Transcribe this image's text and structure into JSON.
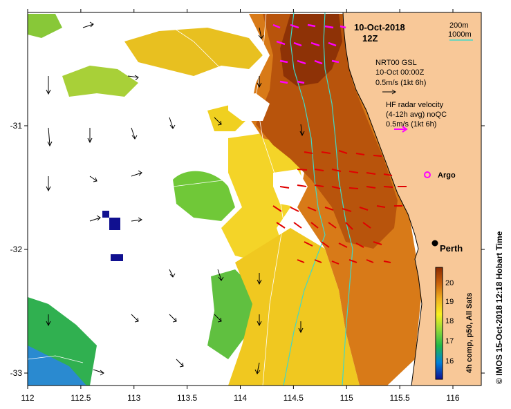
{
  "map": {
    "date_title": "10-Oct-2018",
    "time_title": "12Z",
    "bathymetry_legend": {
      "line1": "200m",
      "line2": "1000m"
    },
    "wind_legend": {
      "line1": "NRT00 GSL",
      "line2": "10-Oct 00:00Z",
      "line3": "0.5m/s (1kt 6h)"
    },
    "radar_legend": {
      "line1": "HF radar velocity",
      "line2": "(4-12h avg) noQC",
      "line3": "0.5m/s (1kt 6h)"
    },
    "argo_label": "Argo",
    "city_label": "Perth",
    "credit": "© IMOS 15-Oct-2018 12:18 Hobart Time",
    "colorbar": {
      "title": "4h comp, p50, All Sats",
      "ticks": [
        "20",
        "19",
        "18",
        "17",
        "16"
      ],
      "colors": [
        "#8b2a00",
        "#c8600a",
        "#f0b020",
        "#f8f020",
        "#90d838",
        "#20b848",
        "#0080d8",
        "#101090"
      ]
    },
    "x_axis": {
      "ticks": [
        "112",
        "112.5",
        "113",
        "113.5",
        "114",
        "114.5",
        "115",
        "115.5",
        "116"
      ]
    },
    "y_axis": {
      "ticks": [
        "-31",
        "-32",
        "-33"
      ]
    },
    "colors": {
      "land": "#f8c898",
      "sea_warm": "#c8620a",
      "sea_mid": "#f0c020",
      "sea_cool": "#60c040",
      "radar_arrow": "#e00000",
      "buoy": "#ff00ff",
      "isobath": "#40d8c8"
    }
  }
}
